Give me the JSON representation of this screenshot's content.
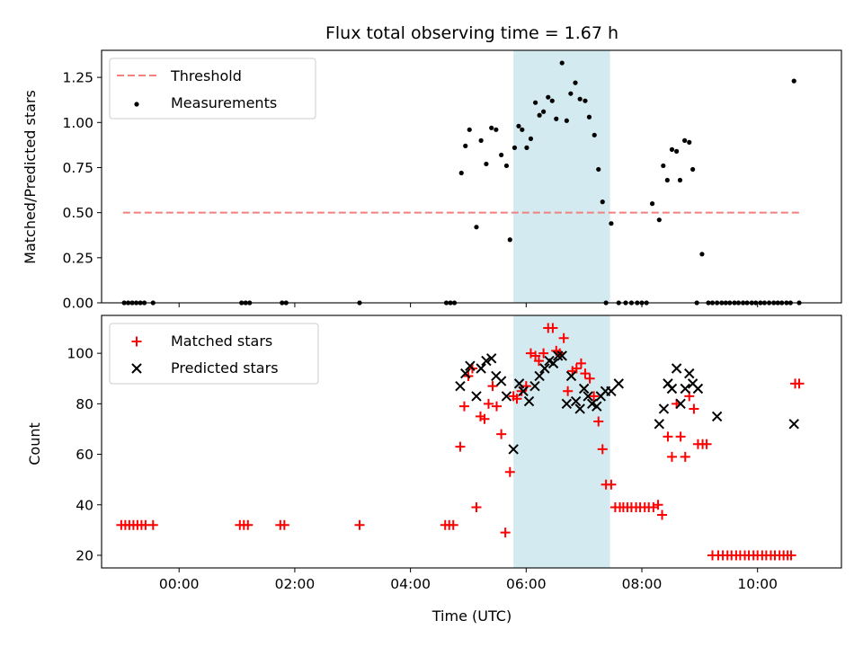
{
  "chart_data": [
    {
      "type": "scatter",
      "title": "Flux total observing time = 1.67 h",
      "ylabel": "Matched/Predicted stars",
      "xlabel": "",
      "x_unit": "hours (UTC)",
      "xlim": [
        -1.34,
        11.45
      ],
      "ylim": [
        0.0,
        1.4
      ],
      "yticks": [
        "0.00",
        "0.25",
        "0.50",
        "0.75",
        "1.00",
        "1.25"
      ],
      "yticks_values": [
        0,
        0.25,
        0.5,
        0.75,
        1.0,
        1.25
      ],
      "legend_position": "upper-left",
      "shaded_span": {
        "start": 5.78,
        "end": 7.45,
        "color": "#d3eaf0"
      },
      "threshold": {
        "label": "Threshold",
        "value": 0.5,
        "x_start": -0.97,
        "x_end": 10.72,
        "color": "#f47f7f"
      },
      "series": [
        {
          "name": "Measurements",
          "marker": "dot",
          "color": "#000000",
          "x": [
            -0.95,
            -0.88,
            -0.81,
            -0.74,
            -0.67,
            -0.6,
            -0.45,
            1.08,
            1.15,
            1.22,
            1.78,
            1.85,
            3.12,
            4.62,
            4.69,
            4.76,
            4.88,
            4.95,
            5.02,
            5.14,
            5.22,
            5.31,
            5.4,
            5.48,
            5.57,
            5.66,
            5.72,
            5.8,
            5.87,
            5.93,
            6.01,
            6.08,
            6.16,
            6.23,
            6.3,
            6.38,
            6.45,
            6.52,
            6.62,
            6.7,
            6.77,
            6.85,
            6.93,
            7.02,
            7.09,
            7.18,
            7.25,
            7.32,
            7.38,
            7.47,
            7.6,
            7.72,
            7.82,
            7.92,
            8.0,
            8.08,
            8.18,
            8.3,
            8.37,
            8.44,
            8.52,
            8.6,
            8.66,
            8.74,
            8.82,
            8.88,
            8.95,
            9.04,
            9.15,
            9.22,
            9.3,
            9.38,
            9.45,
            9.52,
            9.6,
            9.67,
            9.75,
            9.82,
            9.9,
            9.97,
            10.05,
            10.12,
            10.2,
            10.28,
            10.35,
            10.42,
            10.5,
            10.57,
            10.63,
            10.72
          ],
          "y": [
            0,
            0,
            0,
            0,
            0,
            0,
            0,
            0,
            0,
            0,
            0,
            0,
            0,
            0,
            0,
            0,
            0.72,
            0.87,
            0.96,
            0.42,
            0.9,
            0.77,
            0.97,
            0.96,
            0.82,
            0.76,
            0.35,
            0.86,
            0.98,
            0.96,
            0.86,
            0.91,
            1.11,
            1.04,
            1.06,
            1.14,
            1.12,
            1.02,
            1.33,
            1.01,
            1.16,
            1.22,
            1.13,
            1.12,
            1.03,
            0.93,
            0.74,
            0.56,
            0,
            0.44,
            0,
            0,
            0,
            0,
            0,
            0,
            0.55,
            0.46,
            0.76,
            0.68,
            0.85,
            0.84,
            0.68,
            0.9,
            0.89,
            0.74,
            0,
            0.27,
            0,
            0,
            0,
            0,
            0,
            0,
            0,
            0,
            0,
            0,
            0,
            0,
            0,
            0,
            0,
            0,
            0,
            0,
            0,
            0,
            1.23,
            0
          ]
        }
      ]
    },
    {
      "type": "scatter",
      "title": "",
      "ylabel": "Count",
      "xlabel": "Time (UTC)",
      "x_unit": "hours (UTC)",
      "xlim": [
        -1.34,
        11.45
      ],
      "ylim": [
        15,
        115
      ],
      "yticks": [
        "20",
        "40",
        "60",
        "80",
        "100"
      ],
      "yticks_values": [
        20,
        40,
        60,
        80,
        100
      ],
      "xticks": [
        "00:00",
        "02:00",
        "04:00",
        "06:00",
        "08:00",
        "10:00"
      ],
      "xticks_values": [
        0,
        2,
        4,
        6,
        8,
        10
      ],
      "legend_position": "upper-left",
      "shaded_span": {
        "start": 5.78,
        "end": 7.45,
        "color": "#d3eaf0"
      },
      "series": [
        {
          "name": "Matched stars",
          "marker": "plus",
          "color": "#ff0000",
          "x": [
            -1.0,
            -0.93,
            -0.86,
            -0.79,
            -0.72,
            -0.65,
            -0.58,
            -0.45,
            1.05,
            1.12,
            1.19,
            1.75,
            1.82,
            3.12,
            4.6,
            4.67,
            4.74,
            4.86,
            4.93,
            5.0,
            5.07,
            5.14,
            5.21,
            5.28,
            5.35,
            5.42,
            5.49,
            5.57,
            5.64,
            5.72,
            5.78,
            5.84,
            5.92,
            6.0,
            6.08,
            6.16,
            6.22,
            6.3,
            6.38,
            6.46,
            6.52,
            6.58,
            6.65,
            6.72,
            6.8,
            6.87,
            6.95,
            7.02,
            7.1,
            7.17,
            7.25,
            7.32,
            7.38,
            7.47,
            7.54,
            7.62,
            7.68,
            7.75,
            7.82,
            7.9,
            7.97,
            8.05,
            8.12,
            8.2,
            8.28,
            8.35,
            8.45,
            8.52,
            8.6,
            8.67,
            8.75,
            8.82,
            8.9,
            8.97,
            9.05,
            9.12,
            9.22,
            9.32,
            9.4,
            9.48,
            9.55,
            9.63,
            9.7,
            9.78,
            9.85,
            9.93,
            10.0,
            10.08,
            10.15,
            10.23,
            10.3,
            10.38,
            10.45,
            10.52,
            10.58,
            10.65,
            10.72
          ],
          "y": [
            32,
            32,
            32,
            32,
            32,
            32,
            32,
            32,
            32,
            32,
            32,
            32,
            32,
            32,
            32,
            32,
            32,
            63,
            79,
            91,
            94,
            39,
            75,
            74,
            80,
            87,
            79,
            68,
            29,
            53,
            83,
            82,
            85,
            87,
            100,
            99,
            97,
            100,
            110,
            110,
            101,
            100,
            106,
            85,
            93,
            94,
            96,
            92,
            90,
            83,
            73,
            62,
            48,
            48,
            39,
            39,
            39,
            39,
            39,
            39,
            39,
            39,
            39,
            39,
            40,
            36,
            67,
            59,
            80,
            67,
            59,
            83,
            78,
            64,
            64,
            64,
            20,
            20,
            20,
            20,
            20,
            20,
            20,
            20,
            20,
            20,
            20,
            20,
            20,
            20,
            20,
            20,
            20,
            20,
            20,
            88,
            88
          ]
        },
        {
          "name": "Predicted stars",
          "marker": "x",
          "color": "#000000",
          "x": [
            4.86,
            4.95,
            5.03,
            5.14,
            5.22,
            5.31,
            5.4,
            5.48,
            5.57,
            5.66,
            5.78,
            5.88,
            5.95,
            6.05,
            6.15,
            6.23,
            6.32,
            6.4,
            6.47,
            6.55,
            6.62,
            6.7,
            6.78,
            6.86,
            6.93,
            7.0,
            7.07,
            7.14,
            7.22,
            7.29,
            7.37,
            7.47,
            7.6,
            8.3,
            8.38,
            8.45,
            8.52,
            8.6,
            8.67,
            8.75,
            8.82,
            8.88,
            8.97,
            9.3,
            10.63
          ],
          "y": [
            87,
            92,
            95,
            83,
            94,
            97,
            98,
            91,
            89,
            83,
            62,
            88,
            85,
            81,
            87,
            91,
            94,
            97,
            96,
            99,
            99,
            80,
            91,
            81,
            78,
            86,
            83,
            80,
            79,
            83,
            85,
            85,
            88,
            72,
            78,
            88,
            86,
            94,
            80,
            86,
            92,
            88,
            86,
            75,
            72
          ]
        }
      ]
    }
  ]
}
